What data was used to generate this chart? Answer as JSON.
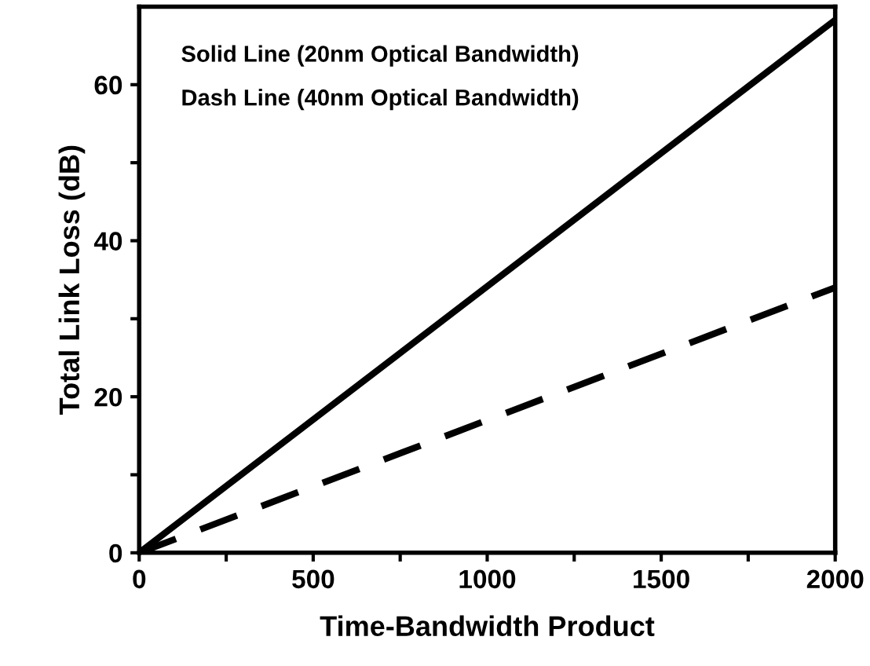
{
  "chart_data": {
    "type": "line",
    "xlabel": "Time-Bandwidth Product",
    "ylabel": "Total Link Loss (dB)",
    "annotations": [
      "Solid Line (20nm Optical Bandwidth)",
      "Dash Line (40nm Optical Bandwidth)"
    ],
    "x": [
      0,
      2000
    ],
    "series": [
      {
        "color": "#000000",
        "values": [
          0,
          68.3
        ],
        "line_style": "solid"
      },
      {
        "color": "#000000",
        "values": [
          0,
          34
        ],
        "line_style": "dashed"
      }
    ],
    "xlim": [
      0,
      2000
    ],
    "ylim": [
      0,
      70
    ],
    "xticks": [
      0,
      {
        "value": 250,
        "label": null
      },
      500,
      {
        "value": 750,
        "label": null
      },
      1000,
      {
        "value": 1250,
        "label": null
      },
      1500,
      {
        "value": 1750,
        "label": null
      },
      2000
    ],
    "yticks": [
      0,
      {
        "value": 10,
        "label": null
      },
      20,
      {
        "value": 30,
        "label": null
      },
      40,
      {
        "value": 50,
        "label": null
      },
      60
    ],
    "grid": false,
    "legend": false,
    "marker": "none"
  }
}
